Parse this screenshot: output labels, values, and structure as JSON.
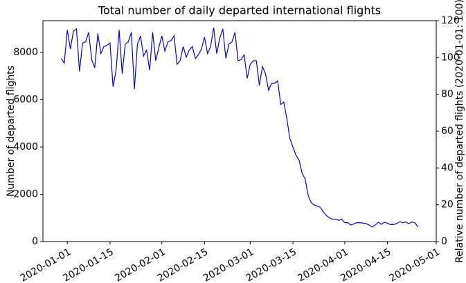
{
  "chart_data": {
    "type": "line",
    "title": "Total number of daily departed international flights",
    "ylabel": "Number of departed flights",
    "y2label": "Relative number of departed flights (2020-01-01: 100)",
    "color": "#0000ee",
    "x": [
      "2019-12-30",
      "2019-12-31",
      "2020-01-01",
      "2020-01-02",
      "2020-01-03",
      "2020-01-04",
      "2020-01-05",
      "2020-01-06",
      "2020-01-07",
      "2020-01-08",
      "2020-01-09",
      "2020-01-10",
      "2020-01-11",
      "2020-01-12",
      "2020-01-13",
      "2020-01-14",
      "2020-01-15",
      "2020-01-16",
      "2020-01-17",
      "2020-01-18",
      "2020-01-19",
      "2020-01-20",
      "2020-01-21",
      "2020-01-22",
      "2020-01-23",
      "2020-01-24",
      "2020-01-25",
      "2020-01-26",
      "2020-01-27",
      "2020-01-28",
      "2020-01-29",
      "2020-01-30",
      "2020-01-31",
      "2020-02-01",
      "2020-02-02",
      "2020-02-03",
      "2020-02-04",
      "2020-02-05",
      "2020-02-06",
      "2020-02-07",
      "2020-02-08",
      "2020-02-09",
      "2020-02-10",
      "2020-02-11",
      "2020-02-12",
      "2020-02-13",
      "2020-02-14",
      "2020-02-15",
      "2020-02-16",
      "2020-02-17",
      "2020-02-18",
      "2020-02-19",
      "2020-02-20",
      "2020-02-21",
      "2020-02-22",
      "2020-02-23",
      "2020-02-24",
      "2020-02-25",
      "2020-02-26",
      "2020-02-27",
      "2020-02-28",
      "2020-02-29",
      "2020-03-01",
      "2020-03-02",
      "2020-03-03",
      "2020-03-04",
      "2020-03-05",
      "2020-03-06",
      "2020-03-07",
      "2020-03-08",
      "2020-03-09",
      "2020-03-10",
      "2020-03-11",
      "2020-03-12",
      "2020-03-13",
      "2020-03-14",
      "2020-03-15",
      "2020-03-16",
      "2020-03-17",
      "2020-03-18",
      "2020-03-19",
      "2020-03-20",
      "2020-03-21",
      "2020-03-22",
      "2020-03-23",
      "2020-03-24",
      "2020-03-25",
      "2020-03-26",
      "2020-03-27",
      "2020-03-28",
      "2020-03-29",
      "2020-03-30",
      "2020-03-31",
      "2020-04-01",
      "2020-04-02",
      "2020-04-03",
      "2020-04-04",
      "2020-04-05",
      "2020-04-06",
      "2020-04-07",
      "2020-04-08",
      "2020-04-09",
      "2020-04-10",
      "2020-04-11",
      "2020-04-12",
      "2020-04-13",
      "2020-04-14",
      "2020-04-15",
      "2020-04-16",
      "2020-04-17",
      "2020-04-18",
      "2020-04-19",
      "2020-04-20",
      "2020-04-21",
      "2020-04-22",
      "2020-04-23",
      "2020-04-24",
      "2020-04-25"
    ],
    "values": [
      7750,
      7550,
      8950,
      8150,
      8900,
      9000,
      7200,
      8400,
      8450,
      8850,
      7700,
      7350,
      8800,
      7950,
      8250,
      8300,
      8400,
      6550,
      7250,
      8950,
      7100,
      8350,
      8450,
      8850,
      6450,
      8350,
      8700,
      7850,
      8100,
      7250,
      8850,
      7650,
      8200,
      8700,
      8050,
      8450,
      8500,
      8700,
      7500,
      7650,
      8250,
      7800,
      8100,
      8250,
      7750,
      7900,
      8150,
      8650,
      7950,
      8250,
      9050,
      7950,
      8600,
      9000,
      7750,
      8350,
      8450,
      8850,
      7650,
      7700,
      7900,
      6900,
      7500,
      7650,
      7650,
      6600,
      7400,
      7100,
      6400,
      6700,
      6700,
      6800,
      5800,
      5900,
      5200,
      4350,
      4000,
      3650,
      3450,
      2900,
      2650,
      1950,
      1650,
      1550,
      1500,
      1450,
      1250,
      1100,
      1000,
      950,
      950,
      900,
      950,
      800,
      800,
      700,
      750,
      800,
      800,
      780,
      760,
      700,
      620,
      700,
      820,
      730,
      820,
      780,
      720,
      720,
      760,
      840,
      800,
      830,
      760,
      830,
      800,
      620
    ],
    "xlim": [
      "2019-12-24",
      "2020-05-01"
    ],
    "xticks": [
      "2020-01-01",
      "2020-01-15",
      "2020-02-01",
      "2020-02-15",
      "2020-03-01",
      "2020-03-15",
      "2020-04-01",
      "2020-04-15",
      "2020-05-01"
    ],
    "ylim": [
      0,
      9343
    ],
    "yticks": [
      0,
      2000,
      4000,
      6000,
      8000
    ],
    "y2lim": [
      0,
      120
    ],
    "y2ticks": [
      0,
      20,
      40,
      60,
      80,
      100,
      120
    ]
  }
}
